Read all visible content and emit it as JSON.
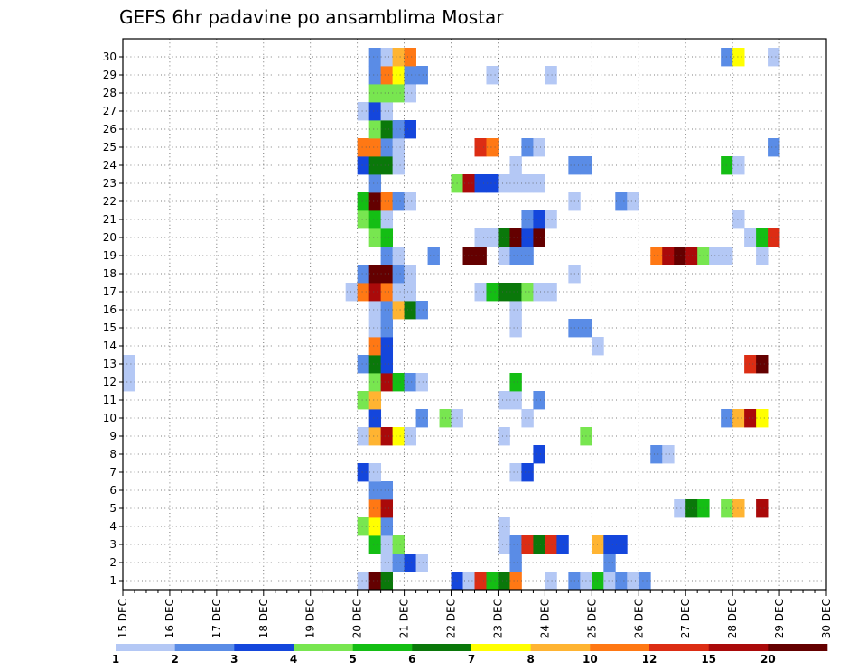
{
  "chart_data": {
    "type": "heatmap",
    "title": "GEFS 6hr padavine po ansamblima Mostar",
    "xlabel": "",
    "ylabel": "",
    "x_tick_labels": [
      "15 DEC",
      "16 DEC",
      "17 DEC",
      "18 DEC",
      "19 DEC",
      "20 DEC",
      "21 DEC",
      "22 DEC",
      "23 DEC",
      "24 DEC",
      "25 DEC",
      "26 DEC",
      "27 DEC",
      "28 DEC",
      "29 DEC",
      "30 DEC"
    ],
    "y_tick_labels": [
      "1",
      "2",
      "3",
      "4",
      "5",
      "6",
      "7",
      "8",
      "9",
      "10",
      "11",
      "12",
      "13",
      "14",
      "15",
      "16",
      "17",
      "18",
      "19",
      "20",
      "21",
      "22",
      "23",
      "24",
      "25",
      "26",
      "27",
      "28",
      "29",
      "30"
    ],
    "x_unit": "6-hour steps from 15 DEC 00 UTC",
    "ylim": [
      1,
      30
    ],
    "grid": true,
    "colorbar": {
      "levels": [
        "1",
        "2",
        "3",
        "4",
        "5",
        "6",
        "7",
        "8",
        "10",
        "12",
        "15",
        "20"
      ],
      "colors": [
        "#b4c8f5",
        "#5a8ce6",
        "#1446dc",
        "#78e650",
        "#14be14",
        "#0a780a",
        "#ffff00",
        "#ffb432",
        "#ff7814",
        "#dc2d14",
        "#aa0a0a",
        "#640000"
      ]
    },
    "cell_bins": "class index c: value between colorbar.levels[c] and colorbar.levels[c+1] (c=11 means >20)",
    "cells": [
      [
        20,
        1,
        0
      ],
      [
        21,
        1,
        11
      ],
      [
        22,
        1,
        5
      ],
      [
        28,
        1,
        2
      ],
      [
        29,
        1,
        0
      ],
      [
        30,
        1,
        9
      ],
      [
        31,
        1,
        4
      ],
      [
        32,
        1,
        5
      ],
      [
        33,
        1,
        8
      ],
      [
        36,
        1,
        0
      ],
      [
        38,
        1,
        1
      ],
      [
        39,
        1,
        0
      ],
      [
        40,
        1,
        4
      ],
      [
        41,
        1,
        0
      ],
      [
        42,
        1,
        1
      ],
      [
        43,
        1,
        0
      ],
      [
        44,
        1,
        1
      ],
      [
        22,
        2,
        0
      ],
      [
        23,
        2,
        1
      ],
      [
        24,
        2,
        2
      ],
      [
        25,
        2,
        0
      ],
      [
        33,
        2,
        1
      ],
      [
        41,
        2,
        1
      ],
      [
        21,
        3,
        4
      ],
      [
        22,
        3,
        0
      ],
      [
        23,
        3,
        3
      ],
      [
        32,
        3,
        0
      ],
      [
        33,
        3,
        1
      ],
      [
        34,
        3,
        9
      ],
      [
        35,
        3,
        5
      ],
      [
        36,
        3,
        9
      ],
      [
        37,
        3,
        2
      ],
      [
        40,
        3,
        7
      ],
      [
        41,
        3,
        2
      ],
      [
        42,
        3,
        2
      ],
      [
        20,
        4,
        3
      ],
      [
        21,
        4,
        6
      ],
      [
        22,
        4,
        1
      ],
      [
        32,
        4,
        0
      ],
      [
        21,
        5,
        8
      ],
      [
        22,
        5,
        10
      ],
      [
        47,
        5,
        0
      ],
      [
        48,
        5,
        5
      ],
      [
        49,
        5,
        4
      ],
      [
        51,
        5,
        3
      ],
      [
        52,
        5,
        7
      ],
      [
        54,
        5,
        10
      ],
      [
        21,
        6,
        1
      ],
      [
        22,
        6,
        1
      ],
      [
        20,
        7,
        2
      ],
      [
        21,
        7,
        0
      ],
      [
        33,
        7,
        0
      ],
      [
        34,
        7,
        2
      ],
      [
        35,
        8,
        2
      ],
      [
        45,
        8,
        1
      ],
      [
        46,
        8,
        0
      ],
      [
        20,
        9,
        0
      ],
      [
        21,
        9,
        7
      ],
      [
        22,
        9,
        10
      ],
      [
        23,
        9,
        6
      ],
      [
        24,
        9,
        0
      ],
      [
        32,
        9,
        0
      ],
      [
        39,
        9,
        3
      ],
      [
        21,
        10,
        2
      ],
      [
        25,
        10,
        1
      ],
      [
        27,
        10,
        3
      ],
      [
        28,
        10,
        0
      ],
      [
        34,
        10,
        0
      ],
      [
        51,
        10,
        1
      ],
      [
        52,
        10,
        7
      ],
      [
        53,
        10,
        10
      ],
      [
        54,
        10,
        6
      ],
      [
        20,
        11,
        3
      ],
      [
        21,
        11,
        7
      ],
      [
        32,
        11,
        0
      ],
      [
        33,
        11,
        0
      ],
      [
        35,
        11,
        1
      ],
      [
        21,
        12,
        3
      ],
      [
        22,
        12,
        10
      ],
      [
        23,
        12,
        4
      ],
      [
        24,
        12,
        1
      ],
      [
        25,
        12,
        0
      ],
      [
        33,
        12,
        4
      ],
      [
        0,
        13,
        0
      ],
      [
        20,
        13,
        1
      ],
      [
        21,
        13,
        5
      ],
      [
        22,
        13,
        2
      ],
      [
        53,
        13,
        9
      ],
      [
        54,
        13,
        11
      ],
      [
        0,
        12,
        0
      ],
      [
        21,
        14,
        8
      ],
      [
        22,
        14,
        2
      ],
      [
        40,
        14,
        0
      ],
      [
        21,
        15,
        0
      ],
      [
        22,
        15,
        1
      ],
      [
        33,
        15,
        0
      ],
      [
        38,
        15,
        1
      ],
      [
        39,
        15,
        1
      ],
      [
        21,
        16,
        0
      ],
      [
        22,
        16,
        1
      ],
      [
        23,
        16,
        7
      ],
      [
        24,
        16,
        5
      ],
      [
        25,
        16,
        1
      ],
      [
        33,
        16,
        0
      ],
      [
        19,
        17,
        0
      ],
      [
        20,
        17,
        8
      ],
      [
        21,
        17,
        10
      ],
      [
        22,
        17,
        8
      ],
      [
        23,
        17,
        0
      ],
      [
        24,
        17,
        0
      ],
      [
        30,
        17,
        0
      ],
      [
        31,
        17,
        4
      ],
      [
        32,
        17,
        5
      ],
      [
        33,
        17,
        5
      ],
      [
        34,
        17,
        3
      ],
      [
        35,
        17,
        0
      ],
      [
        36,
        17,
        0
      ],
      [
        20,
        18,
        1
      ],
      [
        21,
        18,
        11
      ],
      [
        22,
        18,
        11
      ],
      [
        23,
        18,
        1
      ],
      [
        24,
        18,
        0
      ],
      [
        38,
        18,
        0
      ],
      [
        22,
        19,
        1
      ],
      [
        23,
        19,
        0
      ],
      [
        26,
        19,
        1
      ],
      [
        29,
        19,
        11
      ],
      [
        30,
        19,
        11
      ],
      [
        32,
        19,
        0
      ],
      [
        33,
        19,
        1
      ],
      [
        34,
        19,
        1
      ],
      [
        45,
        19,
        8
      ],
      [
        46,
        19,
        10
      ],
      [
        47,
        19,
        11
      ],
      [
        48,
        19,
        10
      ],
      [
        49,
        19,
        3
      ],
      [
        50,
        19,
        0
      ],
      [
        51,
        19,
        0
      ],
      [
        54,
        19,
        0
      ],
      [
        21,
        20,
        3
      ],
      [
        22,
        20,
        4
      ],
      [
        30,
        20,
        0
      ],
      [
        31,
        20,
        0
      ],
      [
        32,
        20,
        5
      ],
      [
        33,
        20,
        11
      ],
      [
        34,
        20,
        2
      ],
      [
        35,
        20,
        11
      ],
      [
        53,
        20,
        0
      ],
      [
        54,
        20,
        4
      ],
      [
        55,
        20,
        9
      ],
      [
        20,
        21,
        3
      ],
      [
        21,
        21,
        4
      ],
      [
        22,
        21,
        0
      ],
      [
        34,
        21,
        1
      ],
      [
        35,
        21,
        2
      ],
      [
        36,
        21,
        0
      ],
      [
        52,
        21,
        0
      ],
      [
        20,
        22,
        4
      ],
      [
        21,
        22,
        11
      ],
      [
        22,
        22,
        8
      ],
      [
        23,
        22,
        1
      ],
      [
        24,
        22,
        0
      ],
      [
        38,
        22,
        0
      ],
      [
        42,
        22,
        1
      ],
      [
        43,
        22,
        0
      ],
      [
        21,
        23,
        1
      ],
      [
        28,
        23,
        3
      ],
      [
        29,
        23,
        10
      ],
      [
        30,
        23,
        2
      ],
      [
        31,
        23,
        2
      ],
      [
        32,
        23,
        0
      ],
      [
        33,
        23,
        0
      ],
      [
        34,
        23,
        0
      ],
      [
        35,
        23,
        0
      ],
      [
        20,
        24,
        2
      ],
      [
        21,
        24,
        5
      ],
      [
        22,
        24,
        5
      ],
      [
        23,
        24,
        0
      ],
      [
        33,
        24,
        0
      ],
      [
        38,
        24,
        1
      ],
      [
        39,
        24,
        1
      ],
      [
        51,
        24,
        4
      ],
      [
        52,
        24,
        0
      ],
      [
        20,
        25,
        8
      ],
      [
        21,
        25,
        8
      ],
      [
        22,
        25,
        1
      ],
      [
        23,
        25,
        0
      ],
      [
        30,
        25,
        9
      ],
      [
        31,
        25,
        8
      ],
      [
        34,
        25,
        1
      ],
      [
        35,
        25,
        0
      ],
      [
        55,
        25,
        1
      ],
      [
        21,
        26,
        3
      ],
      [
        22,
        26,
        5
      ],
      [
        23,
        26,
        1
      ],
      [
        24,
        26,
        2
      ],
      [
        20,
        27,
        0
      ],
      [
        21,
        27,
        2
      ],
      [
        22,
        27,
        0
      ],
      [
        21,
        28,
        3
      ],
      [
        22,
        28,
        3
      ],
      [
        23,
        28,
        3
      ],
      [
        24,
        28,
        0
      ],
      [
        21,
        29,
        1
      ],
      [
        22,
        29,
        8
      ],
      [
        23,
        29,
        6
      ],
      [
        24,
        29,
        1
      ],
      [
        25,
        29,
        1
      ],
      [
        31,
        29,
        0
      ],
      [
        36,
        29,
        0
      ],
      [
        21,
        30,
        1
      ],
      [
        22,
        30,
        0
      ],
      [
        23,
        30,
        7
      ],
      [
        24,
        30,
        8
      ],
      [
        51,
        30,
        1
      ],
      [
        52,
        30,
        6
      ],
      [
        55,
        30,
        0
      ]
    ]
  }
}
